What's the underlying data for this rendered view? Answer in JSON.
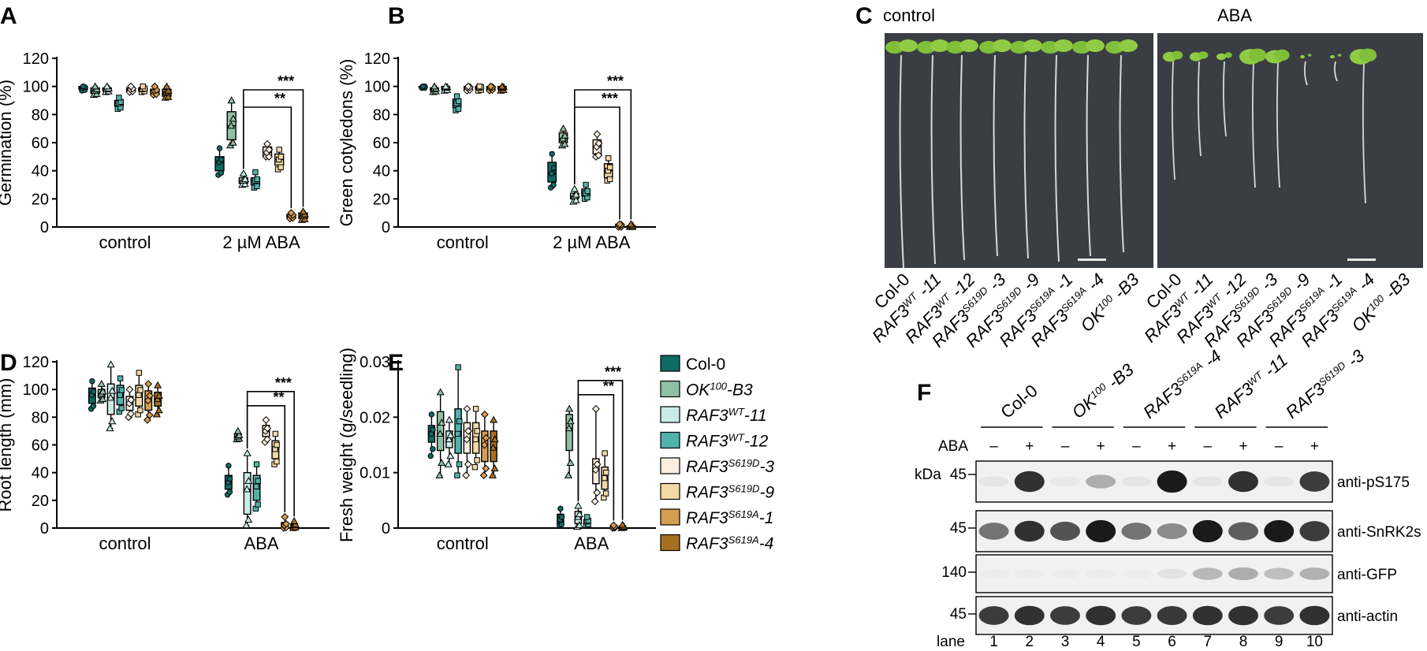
{
  "panel_labels": {
    "A": "A",
    "B": "B",
    "C": "C",
    "D": "D",
    "E": "E",
    "F": "F"
  },
  "colors": {
    "Col-0": "#0e6b64",
    "OK100-B3": "#8fbfa6",
    "RAF3WT-11": "#c9ebe5",
    "RAF3WT-12": "#50b3a9",
    "RAF3S619D-3": "#fbeee0",
    "RAF3S619D-9": "#f3d9a6",
    "RAF3S619A-1": "#d59d4f",
    "RAF3S619A-4": "#a7701f"
  },
  "legend": [
    {
      "key": "Col-0",
      "base": "Col-0",
      "sup": "",
      "suffix": "",
      "italic": false
    },
    {
      "key": "OK100-B3",
      "base": "OK",
      "sup": "100",
      "suffix": "-B3",
      "italic": true
    },
    {
      "key": "RAF3WT-11",
      "base": "RAF3",
      "sup": "WT",
      "suffix": "-11",
      "italic": true
    },
    {
      "key": "RAF3WT-12",
      "base": "RAF3",
      "sup": "WT",
      "suffix": "-12",
      "italic": true
    },
    {
      "key": "RAF3S619D-3",
      "base": "RAF3",
      "sup": "S619D",
      "suffix": "-3",
      "italic": true
    },
    {
      "key": "RAF3S619D-9",
      "base": "RAF3",
      "sup": "S619D",
      "suffix": "-9",
      "italic": true
    },
    {
      "key": "RAF3S619A-1",
      "base": "RAF3",
      "sup": "S619A",
      "suffix": "-1",
      "italic": true
    },
    {
      "key": "RAF3S619A-4",
      "base": "RAF3",
      "sup": "S619A",
      "suffix": "-4",
      "italic": true
    }
  ],
  "chart_data": [
    {
      "panel": "A",
      "type": "box",
      "ylabel": "Germination (%)",
      "ylim": [
        0,
        120
      ],
      "yticks": [
        "0",
        "20",
        "40",
        "60",
        "80",
        "100",
        "120"
      ],
      "groups": [
        "control",
        "2 µM ABA"
      ],
      "series_order": [
        "Col-0",
        "OK100-B3",
        "RAF3WT-11",
        "RAF3WT-12",
        "RAF3S619D-3",
        "RAF3S619D-9",
        "RAF3S619A-1",
        "RAF3S619A-4"
      ],
      "control": [
        [
          97,
          98,
          99,
          100,
          100
        ],
        [
          94,
          95,
          97,
          99,
          100
        ],
        [
          96,
          97,
          98,
          99,
          100
        ],
        [
          84,
          86,
          88,
          90,
          92
        ],
        [
          96,
          97,
          98,
          99,
          100
        ],
        [
          96,
          97,
          98,
          99,
          100
        ],
        [
          94,
          95,
          97,
          98,
          100
        ],
        [
          92,
          93,
          96,
          98,
          100
        ]
      ],
      "treatment": [
        [
          37,
          40,
          46,
          50,
          56
        ],
        [
          58,
          62,
          72,
          82,
          90
        ],
        [
          30,
          31,
          33,
          35,
          38
        ],
        [
          28,
          30,
          33,
          35,
          39
        ],
        [
          50,
          50,
          53,
          57,
          59
        ],
        [
          41,
          44,
          48,
          52,
          55
        ],
        [
          6,
          7,
          8,
          9,
          10
        ],
        [
          5,
          6,
          8,
          10,
          11
        ]
      ],
      "significance": [
        {
          "label": "**",
          "from": 2,
          "to": 6
        },
        {
          "label": "***",
          "from": 2,
          "to": 7
        }
      ]
    },
    {
      "panel": "B",
      "type": "box",
      "ylabel": "Green cotyledons (%)",
      "ylim": [
        0,
        120
      ],
      "yticks": [
        "0",
        "20",
        "40",
        "60",
        "80",
        "100",
        "120"
      ],
      "groups": [
        "control",
        "2 µM ABA"
      ],
      "series_order": [
        "Col-0",
        "OK100-B3",
        "RAF3WT-11",
        "RAF3WT-12",
        "RAF3S619D-3",
        "RAF3S619D-9",
        "RAF3S619A-1",
        "RAF3S619A-4"
      ],
      "control": [
        [
          99,
          99,
          100,
          100,
          100
        ],
        [
          96,
          97,
          98,
          99,
          100
        ],
        [
          97,
          98,
          99,
          100,
          100
        ],
        [
          83,
          85,
          88,
          91,
          93
        ],
        [
          97,
          98,
          99,
          100,
          100
        ],
        [
          97,
          98,
          99,
          100,
          100
        ],
        [
          97,
          98,
          99,
          100,
          100
        ],
        [
          97,
          98,
          99,
          100,
          100
        ]
      ],
      "treatment": [
        [
          28,
          32,
          38,
          46,
          52
        ],
        [
          58,
          60,
          63,
          67,
          70
        ],
        [
          18,
          20,
          22,
          24,
          27
        ],
        [
          20,
          22,
          24,
          27,
          30
        ],
        [
          50,
          52,
          57,
          62,
          66
        ],
        [
          33,
          35,
          40,
          45,
          49
        ],
        [
          0,
          0,
          1,
          2,
          2
        ],
        [
          0,
          0,
          1,
          1,
          2
        ]
      ],
      "significance": [
        {
          "label": "***",
          "from": 2,
          "to": 6
        },
        {
          "label": "***",
          "from": 2,
          "to": 7
        }
      ]
    },
    {
      "panel": "D",
      "type": "box",
      "ylabel": "Root length (mm)",
      "ylim": [
        0,
        120
      ],
      "yticks": [
        "0",
        "20",
        "40",
        "60",
        "80",
        "100",
        "120"
      ],
      "groups": [
        "control",
        "ABA"
      ],
      "series_order": [
        "Col-0",
        "OK100-B3",
        "RAF3WT-11",
        "RAF3WT-12",
        "RAF3S619D-3",
        "RAF3S619D-9",
        "RAF3S619A-1",
        "RAF3S619A-4"
      ],
      "control": [
        [
          86,
          90,
          96,
          101,
          106
        ],
        [
          92,
          94,
          97,
          100,
          104
        ],
        [
          72,
          82,
          94,
          104,
          118
        ],
        [
          84,
          89,
          96,
          103,
          108
        ],
        [
          80,
          85,
          90,
          95,
          100
        ],
        [
          82,
          88,
          96,
          103,
          112
        ],
        [
          78,
          85,
          92,
          99,
          104
        ],
        [
          82,
          88,
          93,
          98,
          103
        ]
      ],
      "treatment": [
        [
          24,
          28,
          33,
          38,
          45
        ],
        [
          64,
          65,
          66,
          68,
          70
        ],
        [
          2,
          10,
          28,
          40,
          54
        ],
        [
          14,
          20,
          30,
          38,
          46
        ],
        [
          62,
          66,
          70,
          74,
          78
        ],
        [
          46,
          50,
          57,
          63,
          68
        ],
        [
          0,
          1,
          2,
          4,
          8
        ],
        [
          0,
          1,
          2,
          3,
          5
        ]
      ],
      "significance": [
        {
          "label": "**",
          "from": 2,
          "to": 6
        },
        {
          "label": "***",
          "from": 2,
          "to": 7
        }
      ]
    },
    {
      "panel": "E",
      "type": "box",
      "ylabel": "Fresh weight  (g/seedling)",
      "ylim": [
        0,
        0.03
      ],
      "yticks": [
        "0",
        "0.01",
        "0.02",
        "0.03"
      ],
      "groups": [
        "control",
        "ABA"
      ],
      "series_order": [
        "Col-0",
        "OK100-B3",
        "RAF3WT-11",
        "RAF3WT-12",
        "RAF3S619D-3",
        "RAF3S619D-9",
        "RAF3S619A-1",
        "RAF3S619A-4"
      ],
      "control": [
        [
          0.013,
          0.0155,
          0.017,
          0.0185,
          0.0205
        ],
        [
          0.0095,
          0.014,
          0.017,
          0.021,
          0.0245
        ],
        [
          0.0115,
          0.0145,
          0.016,
          0.0175,
          0.0195
        ],
        [
          0.0095,
          0.0135,
          0.017,
          0.0215,
          0.029
        ],
        [
          0.0095,
          0.0135,
          0.016,
          0.019,
          0.0215
        ],
        [
          0.011,
          0.0135,
          0.016,
          0.019,
          0.0215
        ],
        [
          0.0095,
          0.012,
          0.015,
          0.0175,
          0.0205
        ],
        [
          0.0095,
          0.012,
          0.0145,
          0.0175,
          0.0195
        ]
      ],
      "treatment": [
        [
          0.0005,
          0.0008,
          0.0015,
          0.0025,
          0.0035
        ],
        [
          0.0095,
          0.014,
          0.018,
          0.0205,
          0.0215
        ],
        [
          0.0002,
          0.0008,
          0.002,
          0.003,
          0.004
        ],
        [
          0.0005,
          0.0008,
          0.0012,
          0.0015,
          0.002
        ],
        [
          0.0048,
          0.008,
          0.0105,
          0.0125,
          0.0215
        ],
        [
          0.0055,
          0.007,
          0.009,
          0.011,
          0.0135
        ],
        [
          0,
          0.0001,
          0.0002,
          0.0003,
          0.0005
        ],
        [
          0,
          0.0001,
          0.0002,
          0.0004,
          0.0006
        ]
      ],
      "significance": [
        {
          "label": "**",
          "from": 2,
          "to": 6
        },
        {
          "label": "***",
          "from": 2,
          "to": 7
        }
      ]
    }
  ],
  "panel_c": {
    "control_title": "control",
    "aba_title": "ABA",
    "lines": [
      {
        "base": "Col-0",
        "sup": "",
        "suffix": "",
        "italic": false
      },
      {
        "base": "RAF3",
        "sup": "WT",
        "suffix": " -11",
        "italic": true
      },
      {
        "base": "RAF3",
        "sup": "WT",
        "suffix": " -12",
        "italic": true
      },
      {
        "base": "RAF3",
        "sup": "S619D",
        "suffix": " -3",
        "italic": true
      },
      {
        "base": "RAF3",
        "sup": "S619D",
        "suffix": " -9",
        "italic": true
      },
      {
        "base": "RAF3",
        "sup": "S619A",
        "suffix": " -1",
        "italic": true
      },
      {
        "base": "RAF3",
        "sup": "S619A",
        "suffix": " -4",
        "italic": true
      },
      {
        "base": "OK",
        "sup": "100",
        "suffix": " -B3",
        "italic": true
      }
    ]
  },
  "panel_f": {
    "genotypes": [
      {
        "base": "Col-0",
        "sup": "",
        "suffix": "",
        "italic": false
      },
      {
        "base": "OK",
        "sup": "100",
        "suffix": " -B3",
        "italic": true
      },
      {
        "base": "RAF3",
        "sup": "S619A",
        "suffix": " -4",
        "italic": true
      },
      {
        "base": "RAF3",
        "sup": "WT",
        "suffix": " -11",
        "italic": true
      },
      {
        "base": "RAF3",
        "sup": "S619D",
        "suffix": " -3",
        "italic": true
      }
    ],
    "aba_label": "ABA",
    "aba_signs": [
      "–",
      "+",
      "–",
      "+",
      "–",
      "+",
      "–",
      "+",
      "–",
      "+"
    ],
    "kda_label": "kDa",
    "rows": [
      {
        "mw": "45",
        "label": "anti-pS175",
        "intensity": [
          0.05,
          0.85,
          0.03,
          0.3,
          0.05,
          0.95,
          0.05,
          0.85,
          0.05,
          0.8
        ]
      },
      {
        "mw": "45",
        "label": "anti-SnRK2s",
        "intensity": [
          0.55,
          0.85,
          0.7,
          0.95,
          0.55,
          0.45,
          0.95,
          0.65,
          0.95,
          0.8
        ]
      },
      {
        "mw": "140",
        "label": "anti-GFP",
        "intensity": [
          0.02,
          0.02,
          0.02,
          0.02,
          0.02,
          0.06,
          0.25,
          0.3,
          0.22,
          0.28
        ]
      },
      {
        "mw": "45",
        "label": "anti-actin",
        "intensity": [
          0.8,
          0.85,
          0.8,
          0.85,
          0.8,
          0.82,
          0.85,
          0.85,
          0.8,
          0.85
        ]
      }
    ],
    "lane_label": "lane",
    "lanes": [
      "1",
      "2",
      "3",
      "4",
      "5",
      "6",
      "7",
      "8",
      "9",
      "10"
    ]
  }
}
